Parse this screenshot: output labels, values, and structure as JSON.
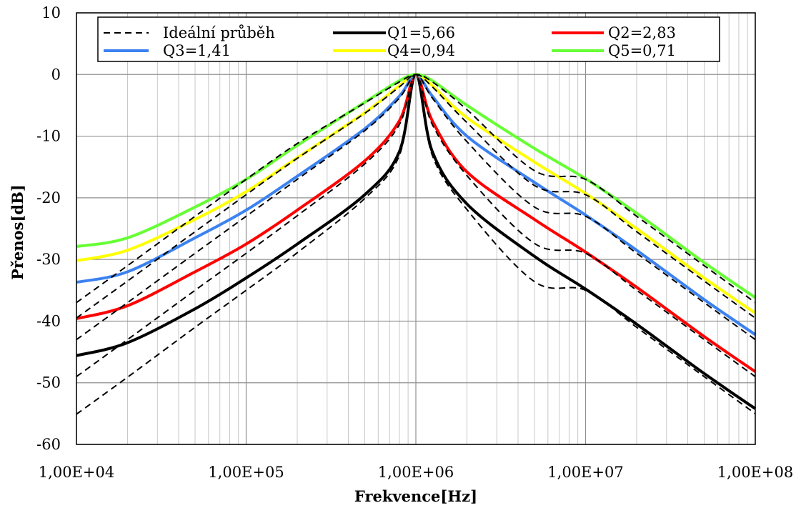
{
  "chart_data": {
    "type": "line",
    "title": "",
    "xlabel": "Frekvence[Hz]",
    "ylabel": "Přenos[dB]",
    "x_scale": "log",
    "xlim": [
      10000,
      100000000
    ],
    "ylim": [
      -60,
      10
    ],
    "x_ticks": [
      10000,
      100000,
      1000000,
      10000000,
      100000000
    ],
    "x_tick_labels": [
      "1,00E+04",
      "1,00E+05",
      "1,00E+06",
      "1,00E+07",
      "1,00E+08"
    ],
    "y_ticks": [
      10,
      0,
      -10,
      -20,
      -30,
      -40,
      -50,
      -60
    ],
    "y_tick_labels": [
      "10",
      "0",
      "-10",
      "-20",
      "-30",
      "-40",
      "-50",
      "-60"
    ],
    "grid": true,
    "legend_position": "top",
    "x": [
      10000,
      20000,
      50000,
      100000,
      200000,
      500000,
      800000,
      1000000,
      1250000,
      2000000,
      5000000,
      10000000,
      20000000,
      50000000,
      100000000
    ],
    "series": [
      {
        "name": "Ideální průběh",
        "color": "#000000",
        "dash": true,
        "values": [
          -55.1,
          -49.1,
          -41.0,
          -35.0,
          -28.9,
          -20.1,
          -13.1,
          0,
          -13.1,
          -21.9,
          -33.6,
          -35.0,
          -41.0,
          -49.0,
          -55.0
        ]
      },
      {
        "name": "Ideální průběh",
        "color": "#000000",
        "dash": true,
        "values": [
          -49.0,
          -43.0,
          -35.0,
          -29.0,
          -22.9,
          -14.5,
          -8.1,
          0,
          -8.1,
          -16.4,
          -27.4,
          -29.0,
          -35.0,
          -43.0,
          -49.0
        ]
      },
      {
        "name": "Ideální průběh",
        "color": "#000000",
        "dash": true,
        "values": [
          -43.0,
          -37.0,
          -29.0,
          -23.0,
          -17.0,
          -9.1,
          -3.8,
          0,
          -3.8,
          -10.9,
          -21.5,
          -23.0,
          -29.0,
          -37.0,
          -43.0
        ]
      },
      {
        "name": "Ideální průběh",
        "color": "#000000",
        "dash": true,
        "values": [
          -39.5,
          -33.5,
          -25.5,
          -19.5,
          -13.6,
          -6.3,
          -2.0,
          0,
          -2.0,
          -7.8,
          -18.0,
          -19.5,
          -25.5,
          -33.5,
          -39.5
        ]
      },
      {
        "name": "Ideální průběh",
        "color": "#000000",
        "dash": true,
        "values": [
          -37.0,
          -31.0,
          -23.0,
          -17.0,
          -11.2,
          -4.6,
          -1.2,
          0,
          -1.2,
          -5.7,
          -15.6,
          -17.0,
          -23.0,
          -31.0,
          -37.0
        ]
      },
      {
        "name": "Q1=5,66",
        "color": "#000000",
        "dash": false,
        "values": [
          -45.6,
          -43.5,
          -38.0,
          -33.0,
          -27.5,
          -19.5,
          -12.5,
          0,
          -12.5,
          -21.0,
          -29.5,
          -34.8,
          -40.5,
          -48.5,
          -54.2
        ]
      },
      {
        "name": "Q2=2,83",
        "color": "#ff0000",
        "dash": false,
        "values": [
          -39.6,
          -37.5,
          -32.0,
          -27.5,
          -22.0,
          -14.0,
          -7.5,
          0,
          -7.5,
          -15.8,
          -23.5,
          -28.8,
          -34.5,
          -42.5,
          -48.2
        ]
      },
      {
        "name": "Q3=1,41",
        "color": "#3b82f0",
        "dash": false,
        "values": [
          -33.7,
          -32.0,
          -26.5,
          -22.0,
          -16.5,
          -8.8,
          -3.5,
          0,
          -3.5,
          -10.0,
          -17.5,
          -22.8,
          -28.5,
          -36.5,
          -42.2
        ]
      },
      {
        "name": "Q4=0,94",
        "color": "#ffff00",
        "dash": false,
        "values": [
          -30.2,
          -28.5,
          -23.5,
          -19.0,
          -13.5,
          -6.2,
          -1.8,
          0,
          -1.8,
          -7.0,
          -14.2,
          -19.3,
          -25.0,
          -33.0,
          -38.7
        ]
      },
      {
        "name": "Q5=0,71",
        "color": "#66ff33",
        "dash": false,
        "values": [
          -27.9,
          -26.5,
          -21.5,
          -17.0,
          -11.5,
          -4.5,
          -1.0,
          0,
          -1.0,
          -5.0,
          -12.0,
          -16.9,
          -22.5,
          -30.5,
          -36.2
        ]
      }
    ],
    "legend": [
      {
        "label": "Ideální průběh",
        "color": "#000000",
        "dash": true
      },
      {
        "label": "Q1=5,66",
        "color": "#000000",
        "dash": false
      },
      {
        "label": "Q2=2,83",
        "color": "#ff0000",
        "dash": false
      },
      {
        "label": "Q3=1,41",
        "color": "#3b82f0",
        "dash": false
      },
      {
        "label": "Q4=0,94",
        "color": "#ffff00",
        "dash": false
      },
      {
        "label": "Q5=0,71",
        "color": "#66ff33",
        "dash": false
      }
    ]
  }
}
